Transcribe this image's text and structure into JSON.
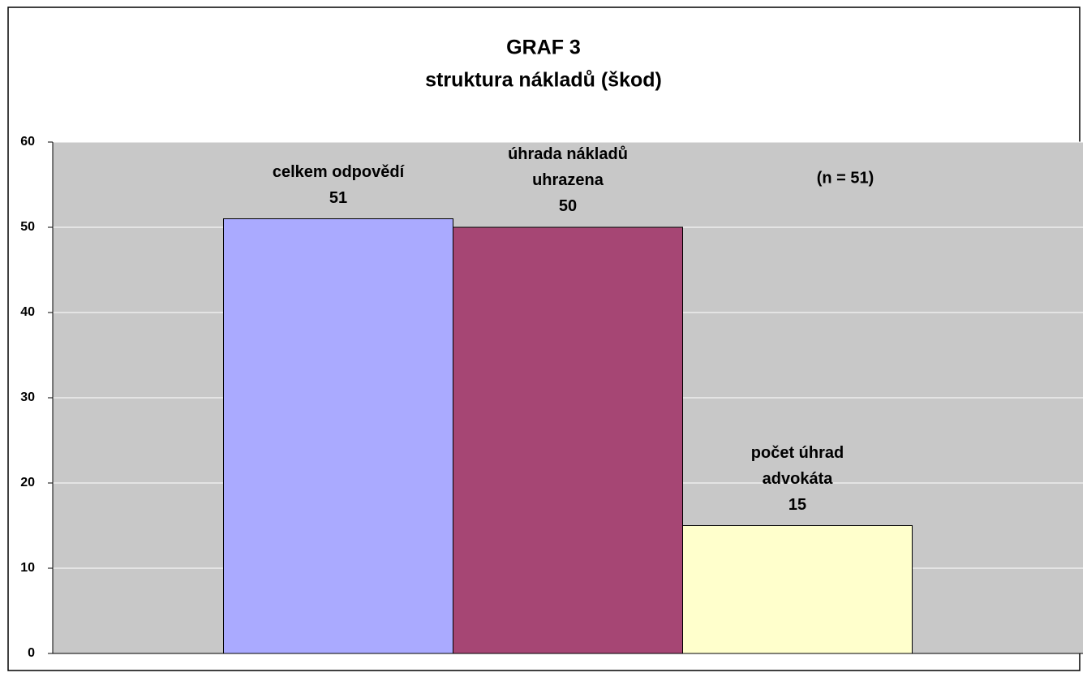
{
  "chart_data": {
    "type": "bar",
    "title": "GRAF 3",
    "subtitle": "struktura nákladů (škod)",
    "annotation": "(n = 51)",
    "categories": [
      null
    ],
    "series": [
      {
        "name": "celkem odpovědí",
        "color": "#aaaaff",
        "values": [
          51
        ]
      },
      {
        "name": "úhrada nákladů uhrazena",
        "color": "#a64674",
        "values": [
          50
        ]
      },
      {
        "name": "počet úhrad advokáta",
        "color": "#ffffcc",
        "values": [
          15
        ]
      }
    ],
    "ylim": [
      0,
      60
    ],
    "yticks": [
      0,
      10,
      20,
      30,
      40,
      50,
      60
    ],
    "grid": true
  }
}
